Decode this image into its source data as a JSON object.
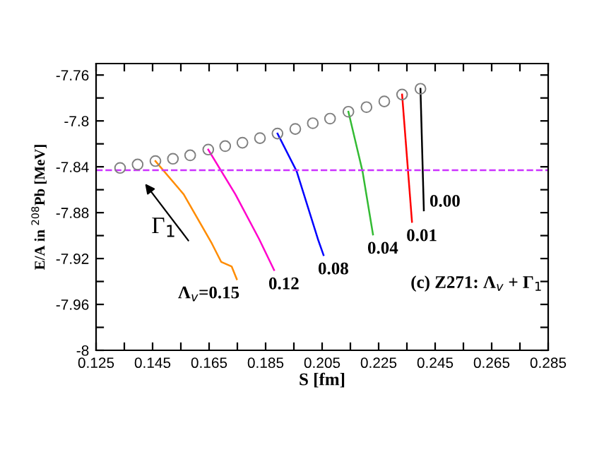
{
  "chart_data": {
    "type": "line",
    "xlabel": "S [fm]",
    "ylabel": "E/A in $^{208}$Pb [MeV]",
    "xlim": [
      0.125,
      0.285
    ],
    "ylim": [
      -8,
      -7.75
    ],
    "xticks": [
      0.125,
      {
        "value": 0.135,
        "label": null
      },
      0.145,
      {
        "value": 0.155,
        "label": null
      },
      0.165,
      {
        "value": 0.175,
        "label": null
      },
      0.185,
      {
        "value": 0.195,
        "label": null
      },
      0.205,
      {
        "value": 0.215,
        "label": null
      },
      0.225,
      {
        "value": 0.235,
        "label": null
      },
      0.245,
      {
        "value": 0.255,
        "label": null
      },
      0.265,
      {
        "value": 0.275,
        "label": null
      },
      0.285
    ],
    "yticks": [
      -8,
      {
        "value": -7.98,
        "label": null
      },
      -7.96,
      {
        "value": -7.94,
        "label": null
      },
      -7.92,
      {
        "value": -7.9,
        "label": null
      },
      -7.88,
      {
        "value": -7.86,
        "label": null
      },
      -7.84,
      {
        "value": -7.82,
        "label": null
      },
      -7.8,
      {
        "value": -7.78,
        "label": null
      },
      -7.76
    ],
    "grid": false,
    "legend": false,
    "series": [
      {
        "type": "scatter",
        "marker": "circle",
        "color": "#808080",
        "x": [
          0.1335,
          0.1397,
          0.146,
          0.1522,
          0.1583,
          0.1647,
          0.1707,
          0.1768,
          0.183,
          0.1892,
          0.1955,
          0.2017,
          0.2078,
          0.2143,
          0.2207,
          0.227,
          0.2333,
          0.2398
        ],
        "values": [
          -7.841,
          -7.838,
          -7.835,
          -7.833,
          -7.83,
          -7.825,
          -7.822,
          -7.819,
          -7.815,
          -7.811,
          -7.807,
          -7.802,
          -7.798,
          -7.792,
          -7.788,
          -7.783,
          -7.777,
          -7.772
        ]
      },
      {
        "name": "0.00",
        "color": "#000000",
        "x": [
          0.2398,
          0.241
        ],
        "values": [
          -7.772,
          -7.878
        ]
      },
      {
        "name": "0.01",
        "color": "#ff0000",
        "x": [
          0.2333,
          0.2368
        ],
        "values": [
          -7.777,
          -7.888
        ]
      },
      {
        "name": "0.04",
        "color": "#33bb33",
        "x": [
          0.2143,
          0.2193,
          0.223
        ],
        "values": [
          -7.792,
          -7.844,
          -7.899
        ]
      },
      {
        "name": "0.08",
        "color": "#0000ff",
        "x": [
          0.1892,
          0.196,
          0.2035,
          0.2055
        ],
        "values": [
          -7.811,
          -7.844,
          -7.903,
          -7.917
        ]
      },
      {
        "name": "0.12",
        "color": "#ff00cc",
        "x": [
          0.1647,
          0.1743,
          0.1827,
          0.188
        ],
        "values": [
          -7.825,
          -7.864,
          -7.903,
          -7.93
        ]
      },
      {
        "name": "Λ$_{v}$=0.15",
        "color": "#ff8c00",
        "x": [
          0.146,
          0.156,
          0.166,
          0.1693,
          0.173,
          0.1748
        ],
        "values": [
          -7.835,
          -7.864,
          -7.907,
          -7.923,
          -7.927,
          -7.938
        ]
      }
    ],
    "ref_lines": [
      {
        "axis": "y",
        "value": -7.843,
        "color": "#cc33ff",
        "line_style": "dashed"
      }
    ],
    "annotations": [
      "Γ$_{1}$",
      "(c) Z271: Λ$_{v}$ + Γ$_{1}$"
    ]
  }
}
